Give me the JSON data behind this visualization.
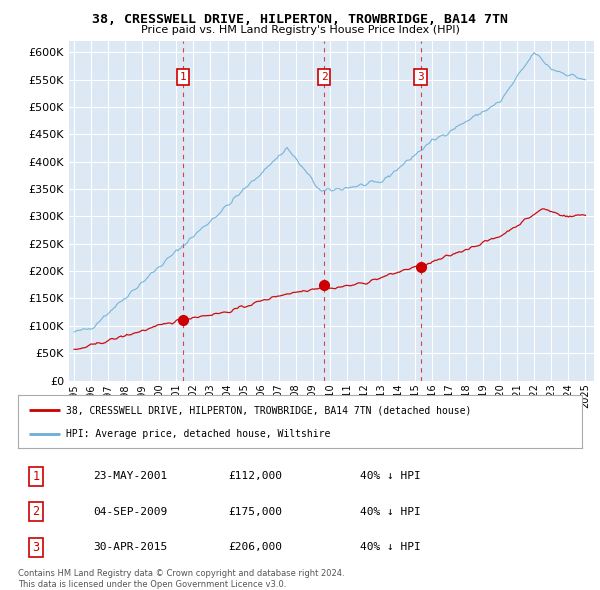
{
  "title": "38, CRESSWELL DRIVE, HILPERTON, TROWBRIDGE, BA14 7TN",
  "subtitle": "Price paid vs. HM Land Registry's House Price Index (HPI)",
  "ylim": [
    0,
    620000
  ],
  "yticks": [
    0,
    50000,
    100000,
    150000,
    200000,
    250000,
    300000,
    350000,
    400000,
    450000,
    500000,
    550000,
    600000
  ],
  "ytick_labels": [
    "£0",
    "£50K",
    "£100K",
    "£150K",
    "£200K",
    "£250K",
    "£300K",
    "£350K",
    "£400K",
    "£450K",
    "£500K",
    "£550K",
    "£600K"
  ],
  "background_color": "#ffffff",
  "plot_bg_color": "#dce9f5",
  "grid_color": "#ffffff",
  "hpi_color": "#6baed6",
  "price_color": "#cc0000",
  "sales": [
    {
      "date_x": 2001.38,
      "price": 112000,
      "label": "1"
    },
    {
      "date_x": 2009.67,
      "price": 175000,
      "label": "2"
    },
    {
      "date_x": 2015.33,
      "price": 206000,
      "label": "3"
    }
  ],
  "footer_text": "Contains HM Land Registry data © Crown copyright and database right 2024.\nThis data is licensed under the Open Government Licence v3.0.",
  "legend_line1": "38, CRESSWELL DRIVE, HILPERTON, TROWBRIDGE, BA14 7TN (detached house)",
  "legend_line2": "HPI: Average price, detached house, Wiltshire",
  "table_data": [
    [
      "1",
      "23-MAY-2001",
      "£112,000",
      "40% ↓ HPI"
    ],
    [
      "2",
      "04-SEP-2009",
      "£175,000",
      "40% ↓ HPI"
    ],
    [
      "3",
      "30-APR-2015",
      "£206,000",
      "40% ↓ HPI"
    ]
  ],
  "xlim": [
    1994.7,
    2025.5
  ],
  "xticks": [
    1995,
    1996,
    1997,
    1998,
    1999,
    2000,
    2001,
    2002,
    2003,
    2004,
    2005,
    2006,
    2007,
    2008,
    2009,
    2010,
    2011,
    2012,
    2013,
    2014,
    2015,
    2016,
    2017,
    2018,
    2019,
    2020,
    2021,
    2022,
    2023,
    2024,
    2025
  ]
}
